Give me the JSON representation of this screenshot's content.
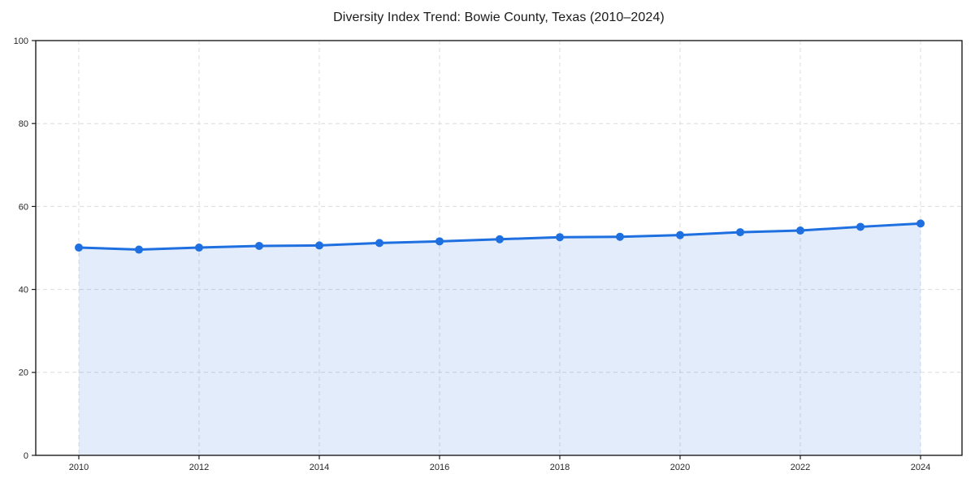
{
  "chart_data": {
    "type": "line",
    "title": "Diversity Index Trend: Bowie County, Texas (2010–2024)",
    "x": [
      2010,
      2011,
      2012,
      2013,
      2014,
      2015,
      2016,
      2017,
      2018,
      2019,
      2020,
      2021,
      2022,
      2023,
      2024
    ],
    "series": [
      {
        "name": "Diversity Index",
        "values": [
          50.1,
          49.6,
          50.1,
          50.5,
          50.6,
          51.2,
          51.6,
          52.1,
          52.6,
          52.7,
          53.1,
          53.8,
          54.2,
          55.1,
          55.9
        ]
      }
    ],
    "xlabel": "",
    "ylabel": "",
    "ylim": [
      0,
      100
    ],
    "yticks": [
      0,
      20,
      40,
      60,
      80,
      100
    ],
    "xticks": [
      2010,
      2012,
      2014,
      2016,
      2018,
      2020,
      2022,
      2024
    ],
    "grid": true,
    "grid_style": "dashed",
    "legend": false,
    "colors": {
      "line": "#1e6fe0",
      "marker": "#1e6fe0",
      "fill": "rgba(30, 111, 224, 0.13)",
      "gridline": "#dcdcdc",
      "spine": "#1c1c1c",
      "tick_label": "#262626",
      "title": "#1a1a1a",
      "background": "#ffffff"
    }
  }
}
